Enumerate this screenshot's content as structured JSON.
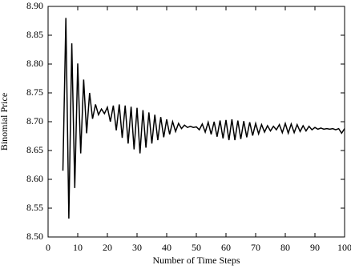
{
  "chart_data": {
    "type": "line",
    "xlabel": "Number of Time Steps",
    "ylabel": "Binomial Price",
    "color": "#000000",
    "x": [
      5,
      6,
      7,
      8,
      9,
      10,
      11,
      12,
      13,
      14,
      15,
      16,
      17,
      18,
      19,
      20,
      21,
      22,
      23,
      24,
      25,
      26,
      27,
      28,
      29,
      30,
      31,
      32,
      33,
      34,
      35,
      36,
      37,
      38,
      39,
      40,
      41,
      42,
      43,
      44,
      45,
      46,
      47,
      48,
      49,
      50,
      51,
      52,
      53,
      54,
      55,
      56,
      57,
      58,
      59,
      60,
      61,
      62,
      63,
      64,
      65,
      66,
      67,
      68,
      69,
      70,
      71,
      72,
      73,
      74,
      75,
      76,
      77,
      78,
      79,
      80,
      81,
      82,
      83,
      84,
      85,
      86,
      87,
      88,
      89,
      90,
      91,
      92,
      93,
      94,
      95,
      96,
      97,
      98,
      99,
      100
    ],
    "values": [
      8.615,
      8.88,
      8.532,
      8.836,
      8.585,
      8.801,
      8.645,
      8.773,
      8.68,
      8.75,
      8.705,
      8.73,
      8.712,
      8.722,
      8.714,
      8.725,
      8.7,
      8.728,
      8.685,
      8.73,
      8.672,
      8.728,
      8.662,
      8.726,
      8.652,
      8.724,
      8.645,
      8.72,
      8.655,
      8.716,
      8.662,
      8.712,
      8.668,
      8.708,
      8.673,
      8.704,
      8.678,
      8.7,
      8.683,
      8.697,
      8.688,
      8.694,
      8.69,
      8.692,
      8.69,
      8.691,
      8.686,
      8.696,
      8.682,
      8.699,
      8.678,
      8.7,
      8.674,
      8.702,
      8.671,
      8.703,
      8.668,
      8.704,
      8.668,
      8.702,
      8.67,
      8.701,
      8.673,
      8.699,
      8.676,
      8.697,
      8.679,
      8.695,
      8.682,
      8.693,
      8.684,
      8.692,
      8.686,
      8.695,
      8.681,
      8.697,
      8.68,
      8.696,
      8.681,
      8.695,
      8.683,
      8.693,
      8.684,
      8.692,
      8.686,
      8.69,
      8.687,
      8.689,
      8.687,
      8.688,
      8.687,
      8.688,
      8.686,
      8.688,
      8.68,
      8.688
    ],
    "xlim": [
      0,
      100
    ],
    "xticks": [
      0,
      10,
      20,
      30,
      40,
      50,
      60,
      70,
      80,
      90,
      100
    ],
    "ylim": [
      8.5,
      8.9
    ],
    "yticks": [
      {
        "value": 8.5,
        "label": "8.50"
      },
      8.55,
      {
        "value": 8.6,
        "label": "8.60"
      },
      8.65,
      {
        "value": 8.7,
        "label": "8.70"
      },
      8.75,
      {
        "value": 8.8,
        "label": "8.80"
      },
      8.85,
      {
        "value": 8.9,
        "label": "8.90"
      }
    ]
  }
}
